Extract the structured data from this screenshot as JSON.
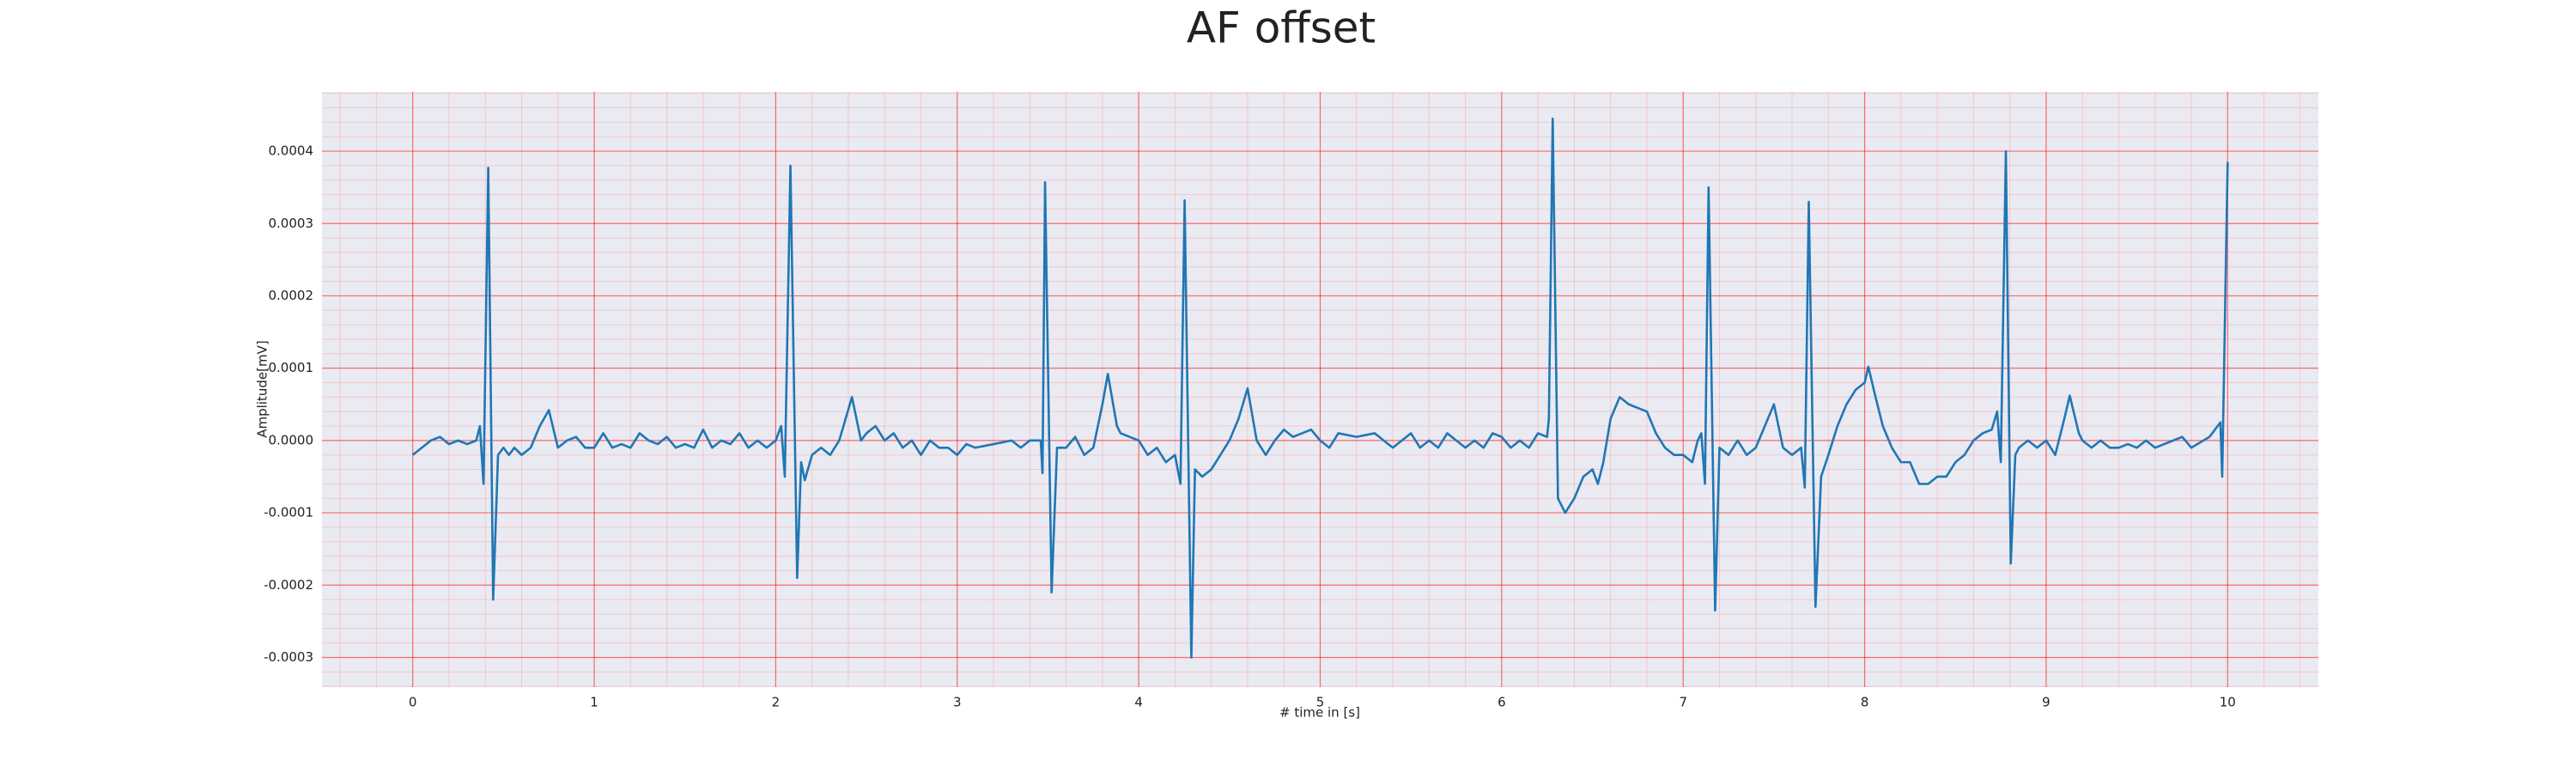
{
  "chart_data": {
    "type": "line",
    "title": "AF offset",
    "xlabel": "# time in [s]",
    "ylabel": "Amplitude[mV]",
    "x": [
      0,
      0.05,
      0.1,
      0.15,
      0.2,
      0.25,
      0.3,
      0.35,
      0.37,
      0.39,
      0.416,
      0.443,
      0.47,
      0.5,
      0.53,
      0.56,
      0.6,
      0.65,
      0.7,
      0.75,
      0.8,
      0.85,
      0.9,
      0.95,
      1.0,
      1.05,
      1.1,
      1.15,
      1.2,
      1.25,
      1.3,
      1.35,
      1.4,
      1.45,
      1.5,
      1.55,
      1.6,
      1.65,
      1.7,
      1.75,
      1.8,
      1.85,
      1.9,
      1.95,
      2.0,
      2.03,
      2.05,
      2.081,
      2.118,
      2.14,
      2.16,
      2.2,
      2.25,
      2.3,
      2.35,
      2.42,
      2.47,
      2.5,
      2.55,
      2.6,
      2.65,
      2.7,
      2.75,
      2.8,
      2.85,
      2.9,
      2.95,
      3.0,
      3.05,
      3.1,
      3.2,
      3.3,
      3.35,
      3.4,
      3.46,
      3.47,
      3.484,
      3.52,
      3.55,
      3.6,
      3.65,
      3.7,
      3.75,
      3.8,
      3.83,
      3.88,
      3.9,
      3.95,
      4.0,
      4.05,
      4.1,
      4.15,
      4.2,
      4.23,
      4.253,
      4.29,
      4.31,
      4.35,
      4.4,
      4.45,
      4.5,
      4.55,
      4.6,
      4.65,
      4.7,
      4.75,
      4.8,
      4.85,
      4.9,
      4.95,
      5.0,
      5.05,
      5.1,
      5.2,
      5.3,
      5.35,
      5.4,
      5.5,
      5.55,
      5.6,
      5.65,
      5.7,
      5.75,
      5.8,
      5.85,
      5.9,
      5.95,
      6.0,
      6.05,
      6.1,
      6.15,
      6.2,
      6.25,
      6.26,
      6.281,
      6.31,
      6.35,
      6.4,
      6.45,
      6.5,
      6.53,
      6.56,
      6.6,
      6.65,
      6.7,
      6.75,
      6.8,
      6.85,
      6.9,
      6.95,
      7.0,
      7.05,
      7.08,
      7.1,
      7.12,
      7.14,
      7.176,
      7.2,
      7.25,
      7.3,
      7.35,
      7.4,
      7.45,
      7.5,
      7.55,
      7.6,
      7.65,
      7.67,
      7.692,
      7.729,
      7.76,
      7.8,
      7.85,
      7.9,
      7.95,
      8.0,
      8.02,
      8.06,
      8.1,
      8.15,
      8.2,
      8.25,
      8.3,
      8.35,
      8.4,
      8.45,
      8.5,
      8.55,
      8.6,
      8.65,
      8.7,
      8.73,
      8.75,
      8.778,
      8.805,
      8.83,
      8.85,
      8.9,
      8.95,
      9.0,
      9.05,
      9.1,
      9.13,
      9.18,
      9.2,
      9.25,
      9.3,
      9.35,
      9.4,
      9.45,
      9.5,
      9.55,
      9.6,
      9.7,
      9.75,
      9.8,
      9.9,
      9.96,
      9.97,
      10.0
    ],
    "values": [
      -2e-05,
      -1e-05,
      0,
      5e-06,
      -5e-06,
      0,
      -5e-06,
      0,
      2e-05,
      -6e-05,
      0.000377,
      -0.00022,
      -2e-05,
      -1e-05,
      -2e-05,
      -1e-05,
      -2e-05,
      -1e-05,
      2e-05,
      4.2e-05,
      -1e-05,
      0,
      5e-06,
      -1e-05,
      -1e-05,
      1e-05,
      -1e-05,
      -5e-06,
      -1e-05,
      1e-05,
      0,
      -5e-06,
      5e-06,
      -1e-05,
      -5e-06,
      -1e-05,
      1.5e-05,
      -1e-05,
      0,
      -5e-06,
      1e-05,
      -1e-05,
      0,
      -1e-05,
      0,
      2e-05,
      -5e-05,
      0.00038,
      -0.00019,
      -3e-05,
      -5.5e-05,
      -2e-05,
      -1e-05,
      -2e-05,
      0,
      6e-05,
      0,
      1e-05,
      2e-05,
      0,
      1e-05,
      -1e-05,
      0,
      -2e-05,
      0,
      -1e-05,
      -1e-05,
      -2e-05,
      -5e-06,
      -1e-05,
      -5e-06,
      0,
      -1e-05,
      0,
      0,
      -4.5e-05,
      0.000357,
      -0.00021,
      -1e-05,
      -1e-05,
      5e-06,
      -2e-05,
      -1e-05,
      5e-05,
      9.2e-05,
      2e-05,
      1e-05,
      5e-06,
      0,
      -2e-05,
      -1e-05,
      -3e-05,
      -2e-05,
      -6e-05,
      0.000332,
      -0.0003,
      -4e-05,
      -5e-05,
      -4e-05,
      -2e-05,
      0,
      3e-05,
      7.2e-05,
      0,
      -2e-05,
      0,
      1.5e-05,
      5e-06,
      1e-05,
      1.5e-05,
      0,
      -1e-05,
      1e-05,
      5e-06,
      1e-05,
      0,
      -1e-05,
      1e-05,
      -1e-05,
      0,
      -1e-05,
      1e-05,
      0,
      -1e-05,
      0,
      -1e-05,
      1e-05,
      5e-06,
      -1e-05,
      0,
      -1e-05,
      1e-05,
      5e-06,
      3e-05,
      0.000445,
      -8e-05,
      -0.0001,
      -8e-05,
      -5e-05,
      -4e-05,
      -6e-05,
      -3e-05,
      3e-05,
      6e-05,
      5e-05,
      4.5e-05,
      4e-05,
      1e-05,
      -1e-05,
      -2e-05,
      -2e-05,
      -3e-05,
      0,
      1e-05,
      -6e-05,
      0.00035,
      -0.000235,
      -1e-05,
      -2e-05,
      0,
      -2e-05,
      -1e-05,
      2e-05,
      5e-05,
      -1e-05,
      -2e-05,
      -1e-05,
      -6.5e-05,
      0.00033,
      -0.00023,
      -5e-05,
      -2e-05,
      2e-05,
      5e-05,
      7e-05,
      8e-05,
      0.000102,
      6e-05,
      2e-05,
      -1e-05,
      -3e-05,
      -3e-05,
      -6e-05,
      -6e-05,
      -5e-05,
      -5e-05,
      -3e-05,
      -2e-05,
      0,
      1e-05,
      1.5e-05,
      4e-05,
      -3e-05,
      0.0004,
      -0.00017,
      -2e-05,
      -1e-05,
      0,
      -1e-05,
      0,
      -2e-05,
      3e-05,
      6.2e-05,
      1e-05,
      0,
      -1e-05,
      0,
      -1e-05,
      -1e-05,
      -5e-06,
      -1e-05,
      0,
      -1e-05,
      0,
      5e-06,
      -1e-05,
      5e-06,
      2.5e-05,
      -5e-05,
      0.000385
    ],
    "color": "#1f77b4",
    "xlim": [
      -0.5,
      10.5
    ],
    "xticks": [
      0,
      1,
      2,
      3,
      4,
      5,
      6,
      7,
      8,
      9,
      10
    ],
    "ylim": [
      -0.000341,
      0.000482
    ],
    "yticks": [
      -0.0003,
      -0.0002,
      -0.0001,
      {
        "value": 0,
        "label": "0.0000"
      },
      0.0001,
      0.0002,
      0.0003,
      0.0004
    ],
    "grid": true,
    "minor_grid": true
  }
}
